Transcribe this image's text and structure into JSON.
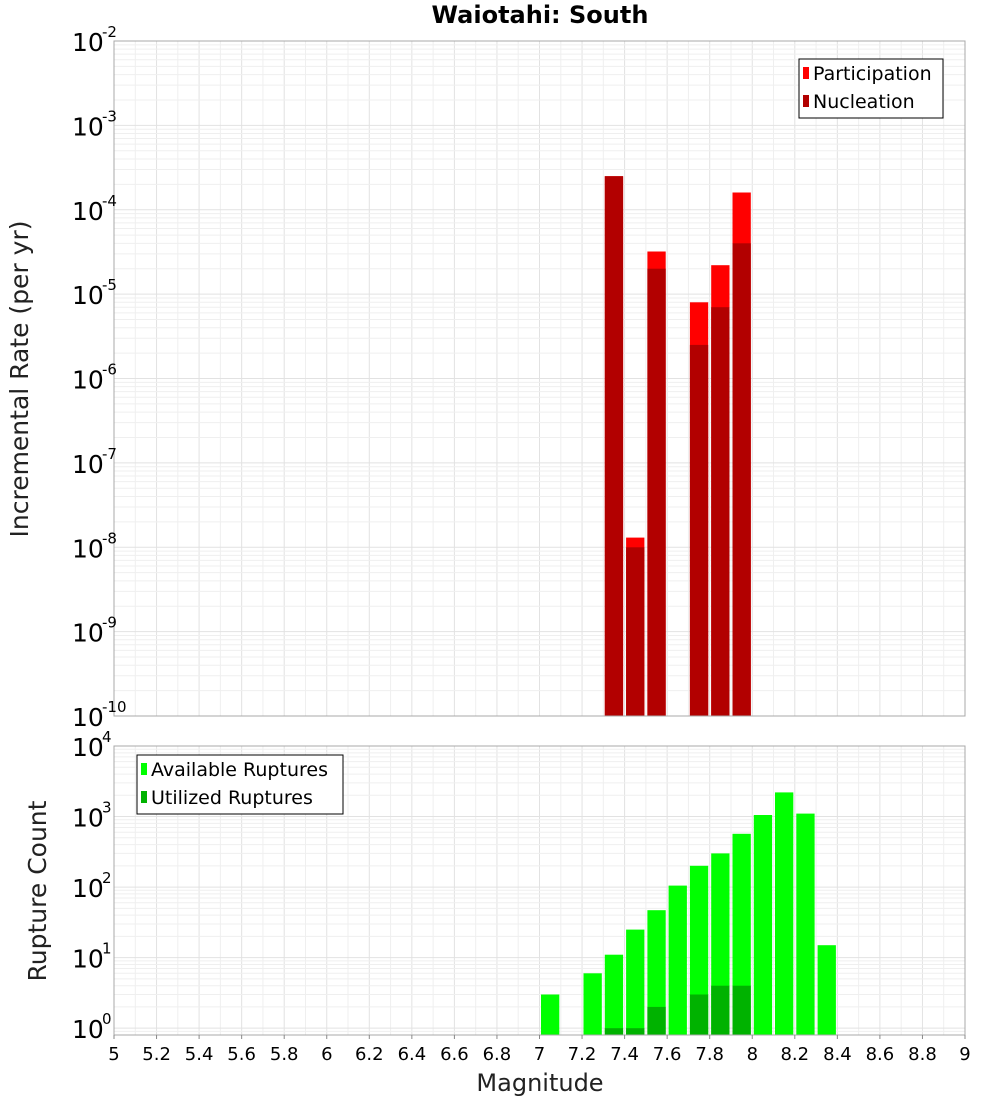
{
  "chart_data": [
    {
      "type": "bar",
      "title": "Waiotahi: South",
      "xlabel": "",
      "ylabel": "Incremental Rate (per yr)",
      "yscale": "log",
      "ylim": [
        1e-10,
        0.01
      ],
      "xlim": [
        5,
        9
      ],
      "ytick_exponents": [
        "-10",
        "-9",
        "-8",
        "-7",
        "-6",
        "-5",
        "-4",
        "-3",
        "-2"
      ],
      "ytick_base": "10",
      "legend_position": "top-right",
      "series": [
        {
          "name": "Participation",
          "color": "#ff0000",
          "x": [
            7.35,
            7.45,
            7.55,
            7.75,
            7.85,
            7.95
          ],
          "values": [
            0.00025,
            1.3e-08,
            3.2e-05,
            8e-06,
            2.2e-05,
            0.00016
          ]
        },
        {
          "name": "Nucleation",
          "color": "#b20000",
          "x": [
            7.35,
            7.45,
            7.55,
            7.75,
            7.85,
            7.95
          ],
          "values": [
            0.00025,
            1e-08,
            2e-05,
            2.5e-06,
            7e-06,
            4e-05
          ]
        }
      ]
    },
    {
      "type": "bar",
      "title": "",
      "xlabel": "Magnitude",
      "ylabel": "Rupture Count",
      "yscale": "log",
      "ylim": [
        0.8,
        10000
      ],
      "xlim": [
        5,
        9
      ],
      "ytick_exponents": [
        "0",
        "1",
        "2",
        "3",
        "4"
      ],
      "ytick_base": "10",
      "xticks": [
        "5",
        "5.2",
        "5.4",
        "5.6",
        "5.8",
        "6",
        "6.2",
        "6.4",
        "6.6",
        "6.8",
        "7",
        "7.2",
        "7.4",
        "7.6",
        "7.8",
        "8",
        "8.2",
        "8.4",
        "8.6",
        "8.8",
        "9"
      ],
      "legend_position": "top-left",
      "series": [
        {
          "name": "Available Ruptures",
          "color": "#00ff00",
          "x": [
            7.05,
            7.25,
            7.35,
            7.45,
            7.55,
            7.65,
            7.75,
            7.85,
            7.95,
            8.05,
            8.15,
            8.25,
            8.35
          ],
          "values": [
            3,
            6,
            11,
            25,
            47,
            105,
            200,
            300,
            570,
            1050,
            2200,
            1100,
            15
          ]
        },
        {
          "name": "Utilized Ruptures",
          "color": "#00b200",
          "x": [
            7.35,
            7.45,
            7.55,
            7.75,
            7.85,
            7.95
          ],
          "values": [
            1,
            1,
            2,
            3,
            4,
            4
          ]
        }
      ]
    }
  ]
}
